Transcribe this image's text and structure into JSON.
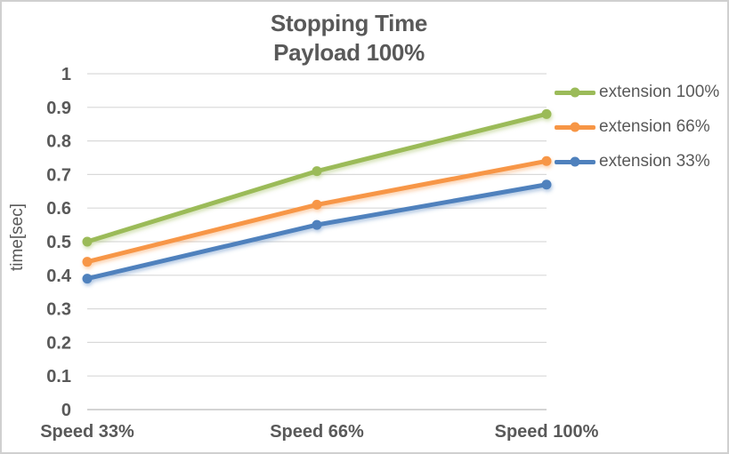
{
  "chart_data": {
    "type": "line",
    "title": "Stopping Time",
    "subtitle": "Payload 100%",
    "ylabel": "time[sec]",
    "categories": [
      "Speed 33%",
      "Speed 66%",
      "Speed 100%"
    ],
    "series": [
      {
        "name": "extension 100%",
        "color": "#9BBB59",
        "values": [
          0.5,
          0.71,
          0.88
        ]
      },
      {
        "name": "extension 66%",
        "color": "#F79646",
        "values": [
          0.44,
          0.61,
          0.74
        ]
      },
      {
        "name": "extension 33%",
        "color": "#4F81BD",
        "values": [
          0.39,
          0.55,
          0.67
        ]
      }
    ],
    "ylim": [
      0,
      1
    ],
    "ytick_step": 0.1,
    "ytick_labels": [
      "0",
      "0.1",
      "0.2",
      "0.3",
      "0.4",
      "0.5",
      "0.6",
      "0.7",
      "0.8",
      "0.9",
      "1"
    ],
    "grid": "horizontal",
    "legend_position": "right",
    "marker_style": "circle",
    "colors": {
      "text": "#595959",
      "gridline": "#D9D9D9",
      "axis_line": "#C6C6C6",
      "border": "#D0D0D0",
      "background": "#FFFFFF"
    }
  }
}
